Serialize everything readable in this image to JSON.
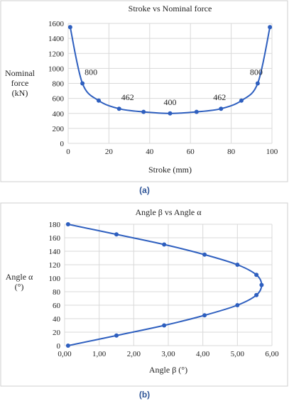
{
  "captions": {
    "a": "(a)",
    "b": "(b)"
  },
  "chart_data": [
    {
      "type": "line",
      "title": "Stroke vs Nominal force",
      "xlabel": "Stroke (mm)",
      "ylabel_lines": [
        "Nominal",
        "force",
        "(kN)"
      ],
      "xlim": [
        0,
        100
      ],
      "ylim": [
        0,
        1600
      ],
      "xticks": [
        0,
        20,
        40,
        60,
        80,
        100
      ],
      "yticks": [
        0,
        200,
        400,
        600,
        800,
        1000,
        1200,
        1400,
        1600
      ],
      "grid": true,
      "color": "#2e5fbf",
      "x": [
        1,
        7,
        15,
        25,
        37,
        50,
        63,
        75,
        85,
        93,
        99
      ],
      "y": [
        1550,
        800,
        570,
        462,
        420,
        400,
        420,
        462,
        570,
        800,
        1550
      ],
      "data_labels": [
        {
          "x": 7,
          "y": 800,
          "text": "800"
        },
        {
          "x": 25,
          "y": 462,
          "text": "462"
        },
        {
          "x": 50,
          "y": 400,
          "text": "400"
        },
        {
          "x": 75,
          "y": 462,
          "text": "462"
        },
        {
          "x": 93,
          "y": 800,
          "text": "800"
        }
      ]
    },
    {
      "type": "line",
      "title": "Angle β vs Angle α",
      "xlabel": "Angle β (°)",
      "ylabel_lines": [
        "Angle α",
        "(°)"
      ],
      "xlim": [
        0,
        6
      ],
      "ylim": [
        0,
        180
      ],
      "xticks": [
        0,
        1,
        2,
        3,
        4,
        5,
        6
      ],
      "xtick_labels": [
        "0,00",
        "1,00",
        "2,00",
        "3,00",
        "4,00",
        "5,00",
        "6,00"
      ],
      "yticks": [
        0,
        20,
        40,
        60,
        80,
        100,
        120,
        140,
        160,
        180
      ],
      "grid": true,
      "color": "#2e5fbf",
      "x": [
        0.1,
        1.5,
        2.88,
        4.05,
        5.0,
        5.55,
        5.7,
        5.55,
        5.0,
        4.05,
        2.88,
        1.5,
        0.1
      ],
      "y": [
        180,
        165,
        150,
        135,
        120,
        105,
        90,
        75,
        60,
        45,
        30,
        15,
        0
      ]
    }
  ]
}
